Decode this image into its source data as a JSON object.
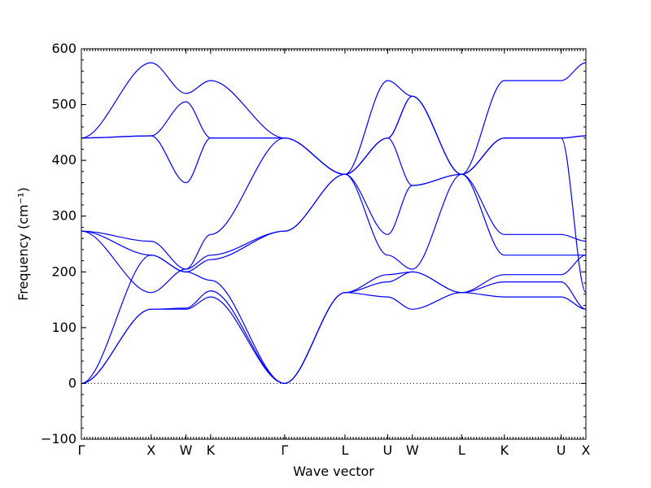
{
  "chart_data": {
    "type": "line",
    "title": "",
    "xlabel": "Wave vector",
    "ylabel": "Frequency (cm⁻¹)",
    "ylim": [
      -100,
      600
    ],
    "yticks": [
      -100,
      0,
      100,
      200,
      300,
      400,
      500,
      600
    ],
    "xlim": [
      0,
      7.236
    ],
    "xticks": [
      {
        "pos": 0.0,
        "label": "Γ"
      },
      {
        "pos": 1.0,
        "label": "X"
      },
      {
        "pos": 1.5,
        "label": "W"
      },
      {
        "pos": 1.854,
        "label": "K"
      },
      {
        "pos": 2.915,
        "label": "Γ"
      },
      {
        "pos": 3.781,
        "label": "L"
      },
      {
        "pos": 4.393,
        "label": "U"
      },
      {
        "pos": 4.747,
        "label": "W"
      },
      {
        "pos": 5.454,
        "label": "L"
      },
      {
        "pos": 6.067,
        "label": "K"
      },
      {
        "pos": 6.882,
        "label": "U"
      },
      {
        "pos": 7.236,
        "label": "X"
      }
    ],
    "reference_line": 0,
    "grid": false,
    "color": "#0000ff",
    "series": [
      {
        "x": [
          0,
          1.0,
          1.5,
          1.854,
          2.915,
          3.781,
          4.393,
          4.747,
          5.454,
          6.067,
          6.882,
          7.236
        ],
        "y": [
          0,
          133,
          133,
          155,
          0,
          163,
          155,
          133,
          163,
          155,
          155,
          133
        ]
      },
      {
        "x": [
          0,
          1.0,
          1.5,
          1.854,
          2.915,
          3.781,
          4.393,
          4.747,
          5.454,
          6.067,
          6.882,
          7.236
        ],
        "y": [
          0,
          133,
          135,
          166,
          0,
          163,
          182,
          200,
          163,
          182,
          182,
          133
        ]
      },
      {
        "x": [
          0,
          1.0,
          1.5,
          1.854,
          2.915,
          3.781,
          4.393,
          4.747,
          5.454,
          6.067,
          6.882,
          7.236
        ],
        "y": [
          0,
          230,
          200,
          185,
          0,
          163,
          195,
          200,
          163,
          195,
          195,
          230
        ]
      },
      {
        "x": [
          0,
          1.0,
          1.5,
          1.854,
          2.915,
          3.781,
          4.393,
          4.747,
          5.454,
          6.067,
          6.882,
          7.236
        ],
        "y": [
          273,
          230,
          200,
          222,
          273,
          375,
          230,
          205,
          375,
          230,
          230,
          230
        ]
      },
      {
        "x": [
          0,
          1.0,
          1.5,
          1.854,
          2.915,
          3.781,
          4.393,
          4.747,
          5.454,
          6.067,
          6.882,
          7.236
        ],
        "y": [
          273,
          255,
          205,
          230,
          273,
          375,
          267,
          355,
          375,
          267,
          267,
          255
        ]
      },
      {
        "x": [
          0,
          1.0,
          1.5,
          1.854,
          2.915,
          3.781,
          4.393,
          4.747,
          5.454,
          6.067,
          6.882,
          7.236
        ],
        "y": [
          273,
          163,
          205,
          267,
          440,
          375,
          440,
          355,
          375,
          440,
          440,
          163
        ]
      },
      {
        "x": [
          0,
          1.0,
          1.5,
          1.854,
          2.915,
          3.781,
          4.393,
          4.747,
          5.454,
          6.067,
          6.882,
          7.236
        ],
        "y": [
          440,
          444,
          360,
          440,
          440,
          375,
          440,
          515,
          375,
          440,
          440,
          444
        ]
      },
      {
        "x": [
          0,
          1.0,
          1.5,
          1.854,
          2.915,
          3.781,
          4.393,
          4.747,
          5.454,
          6.067,
          6.882,
          7.236
        ],
        "y": [
          440,
          444,
          505,
          440,
          440,
          375,
          440,
          515,
          375,
          440,
          440,
          444
        ]
      },
      {
        "x": [
          0,
          1.0,
          1.5,
          1.854,
          2.915,
          3.781,
          4.393,
          4.747,
          5.454,
          6.067,
          6.882,
          7.236
        ],
        "y": [
          440,
          575,
          520,
          543,
          440,
          375,
          543,
          515,
          375,
          543,
          543,
          575
        ]
      }
    ]
  }
}
